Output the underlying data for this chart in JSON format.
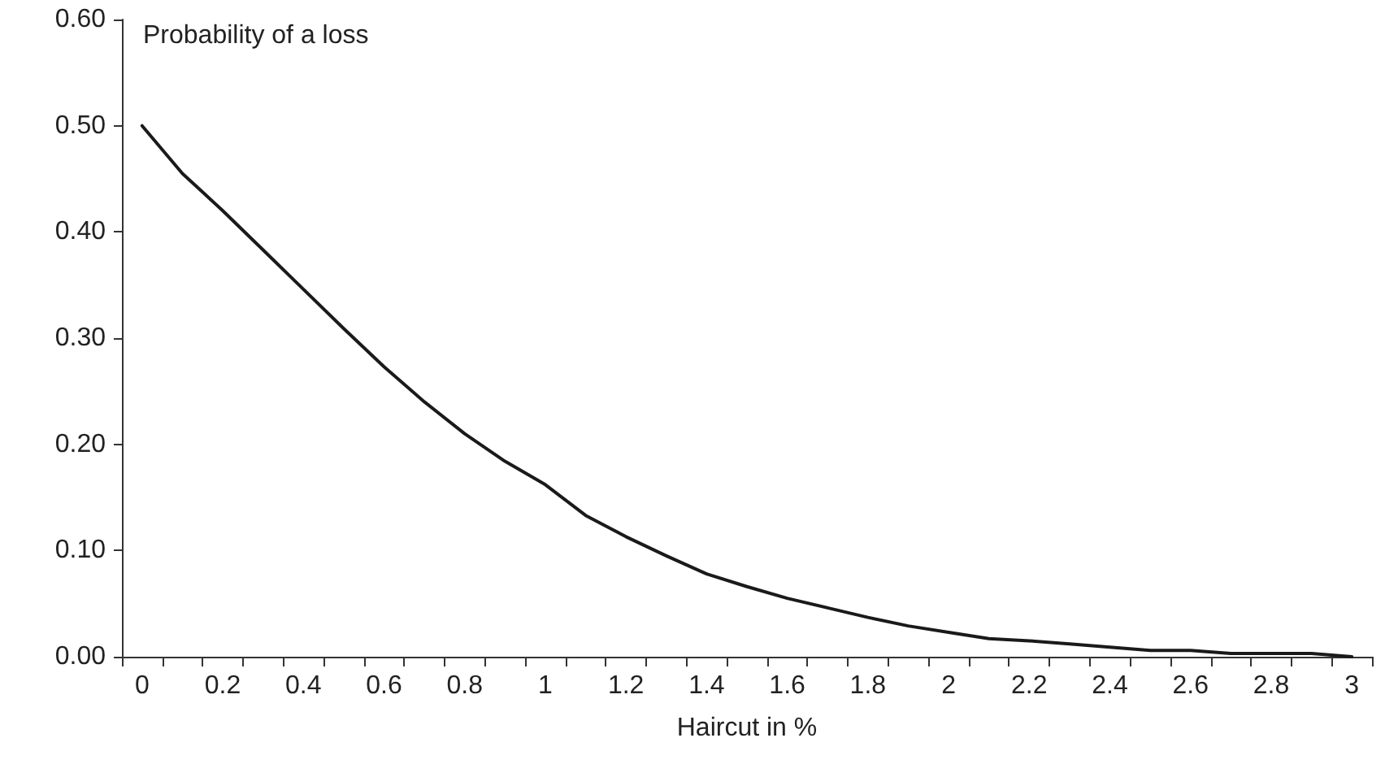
{
  "chart_data": {
    "type": "line",
    "ylabel": "Probability of a loss",
    "xlabel": "Haircut in %",
    "categories": [
      "0",
      null,
      "0.2",
      null,
      "0.4",
      null,
      "0.6",
      null,
      "0.8",
      null,
      "1",
      null,
      "1.2",
      null,
      "1.4",
      null,
      "1.6",
      null,
      "1.8",
      null,
      "2",
      null,
      "2.2",
      null,
      "2.4",
      null,
      "2.6",
      null,
      "2.8",
      null,
      "3"
    ],
    "series": [
      {
        "color": "#1a1a1a",
        "values": [
          0.5,
          0.455,
          0.42,
          0.383,
          0.346,
          0.309,
          0.273,
          0.24,
          0.21,
          0.184,
          0.162,
          0.133,
          0.113,
          0.095,
          0.078,
          0.066,
          0.055,
          0.046,
          0.037,
          0.029,
          0.023,
          0.017,
          0.015,
          0.012,
          0.009,
          0.006,
          0.006,
          0.003,
          0.003,
          0.003,
          0.0
        ]
      }
    ],
    "ylim": [
      0,
      0.6
    ],
    "yticks": [
      {
        "value": 0,
        "label": "0.00"
      },
      {
        "value": 0.1,
        "label": "0.10"
      },
      {
        "value": 0.2,
        "label": "0.20"
      },
      {
        "value": 0.3,
        "label": "0.30"
      },
      {
        "value": 0.4,
        "label": "0.40"
      },
      {
        "value": 0.5,
        "label": "0.50"
      },
      {
        "value": 0.6,
        "label": "0.60"
      }
    ],
    "grid": false,
    "marker": "none",
    "line_style": "solid"
  }
}
